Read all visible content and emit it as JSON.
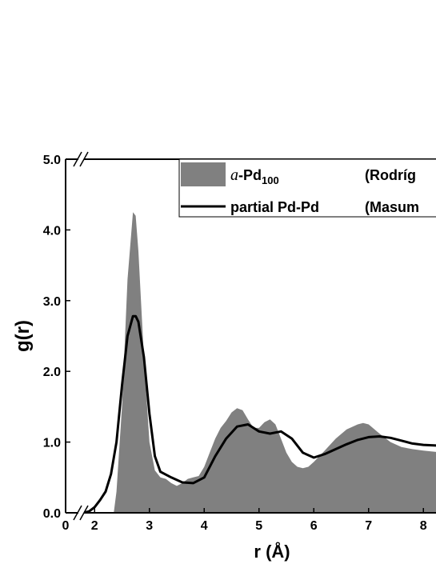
{
  "chart_data": {
    "type": "line",
    "xlabel": "r (Å)",
    "ylabel": "g(r)",
    "xlim": [
      0,
      8.25
    ],
    "xbreak": [
      0.25,
      1.75
    ],
    "xticks": [
      0,
      2,
      3,
      4,
      5,
      6,
      7,
      8
    ],
    "ylim": [
      0,
      5
    ],
    "yticks": [
      {
        "value": 0,
        "label": "0.0"
      },
      {
        "value": 1,
        "label": "1.0"
      },
      {
        "value": 2,
        "label": "2.0"
      },
      {
        "value": 3,
        "label": "3.0"
      },
      {
        "value": 4,
        "label": "4.0"
      },
      {
        "value": 5,
        "label": "5.0"
      }
    ],
    "legend": "top-right",
    "series": [
      {
        "name": "a-Pd100",
        "reference": "(Rodríg",
        "kind": "area",
        "color": "#808080",
        "x": [
          2.35,
          2.4,
          2.5,
          2.6,
          2.7,
          2.75,
          2.8,
          2.9,
          3.0,
          3.1,
          3.2,
          3.3,
          3.4,
          3.5,
          3.6,
          3.7,
          3.8,
          3.9,
          4.0,
          4.1,
          4.2,
          4.3,
          4.4,
          4.5,
          4.6,
          4.7,
          4.8,
          4.9,
          5.0,
          5.1,
          5.2,
          5.3,
          5.4,
          5.5,
          5.6,
          5.7,
          5.8,
          5.9,
          6.0,
          6.2,
          6.4,
          6.6,
          6.8,
          6.9,
          7.0,
          7.2,
          7.4,
          7.6,
          7.8,
          8.0,
          8.25
        ],
        "values": [
          0,
          0.3,
          1.5,
          3.3,
          4.25,
          4.2,
          3.7,
          2.2,
          1.0,
          0.6,
          0.5,
          0.48,
          0.42,
          0.38,
          0.42,
          0.48,
          0.5,
          0.52,
          0.65,
          0.85,
          1.05,
          1.2,
          1.3,
          1.42,
          1.48,
          1.45,
          1.32,
          1.2,
          1.2,
          1.28,
          1.32,
          1.25,
          1.05,
          0.85,
          0.72,
          0.65,
          0.63,
          0.65,
          0.72,
          0.88,
          1.05,
          1.18,
          1.25,
          1.27,
          1.25,
          1.12,
          1.0,
          0.93,
          0.9,
          0.88,
          0.86
        ]
      },
      {
        "name": "partial Pd-Pd",
        "reference": "(Masum",
        "kind": "line",
        "color": "#000000",
        "x": [
          1.8,
          1.9,
          2.0,
          2.1,
          2.2,
          2.3,
          2.4,
          2.5,
          2.6,
          2.7,
          2.75,
          2.8,
          2.9,
          3.0,
          3.1,
          3.2,
          3.4,
          3.6,
          3.8,
          4.0,
          4.2,
          4.4,
          4.6,
          4.8,
          5.0,
          5.2,
          5.4,
          5.6,
          5.8,
          6.0,
          6.2,
          6.4,
          6.6,
          6.8,
          7.0,
          7.2,
          7.4,
          7.6,
          7.8,
          8.0,
          8.25
        ],
        "values": [
          0,
          0.02,
          0.08,
          0.18,
          0.3,
          0.55,
          1.0,
          1.8,
          2.5,
          2.78,
          2.78,
          2.7,
          2.2,
          1.4,
          0.8,
          0.58,
          0.5,
          0.43,
          0.42,
          0.5,
          0.8,
          1.05,
          1.22,
          1.25,
          1.15,
          1.12,
          1.15,
          1.05,
          0.85,
          0.78,
          0.83,
          0.9,
          0.97,
          1.03,
          1.07,
          1.08,
          1.06,
          1.02,
          0.98,
          0.96,
          0.95
        ]
      }
    ]
  }
}
